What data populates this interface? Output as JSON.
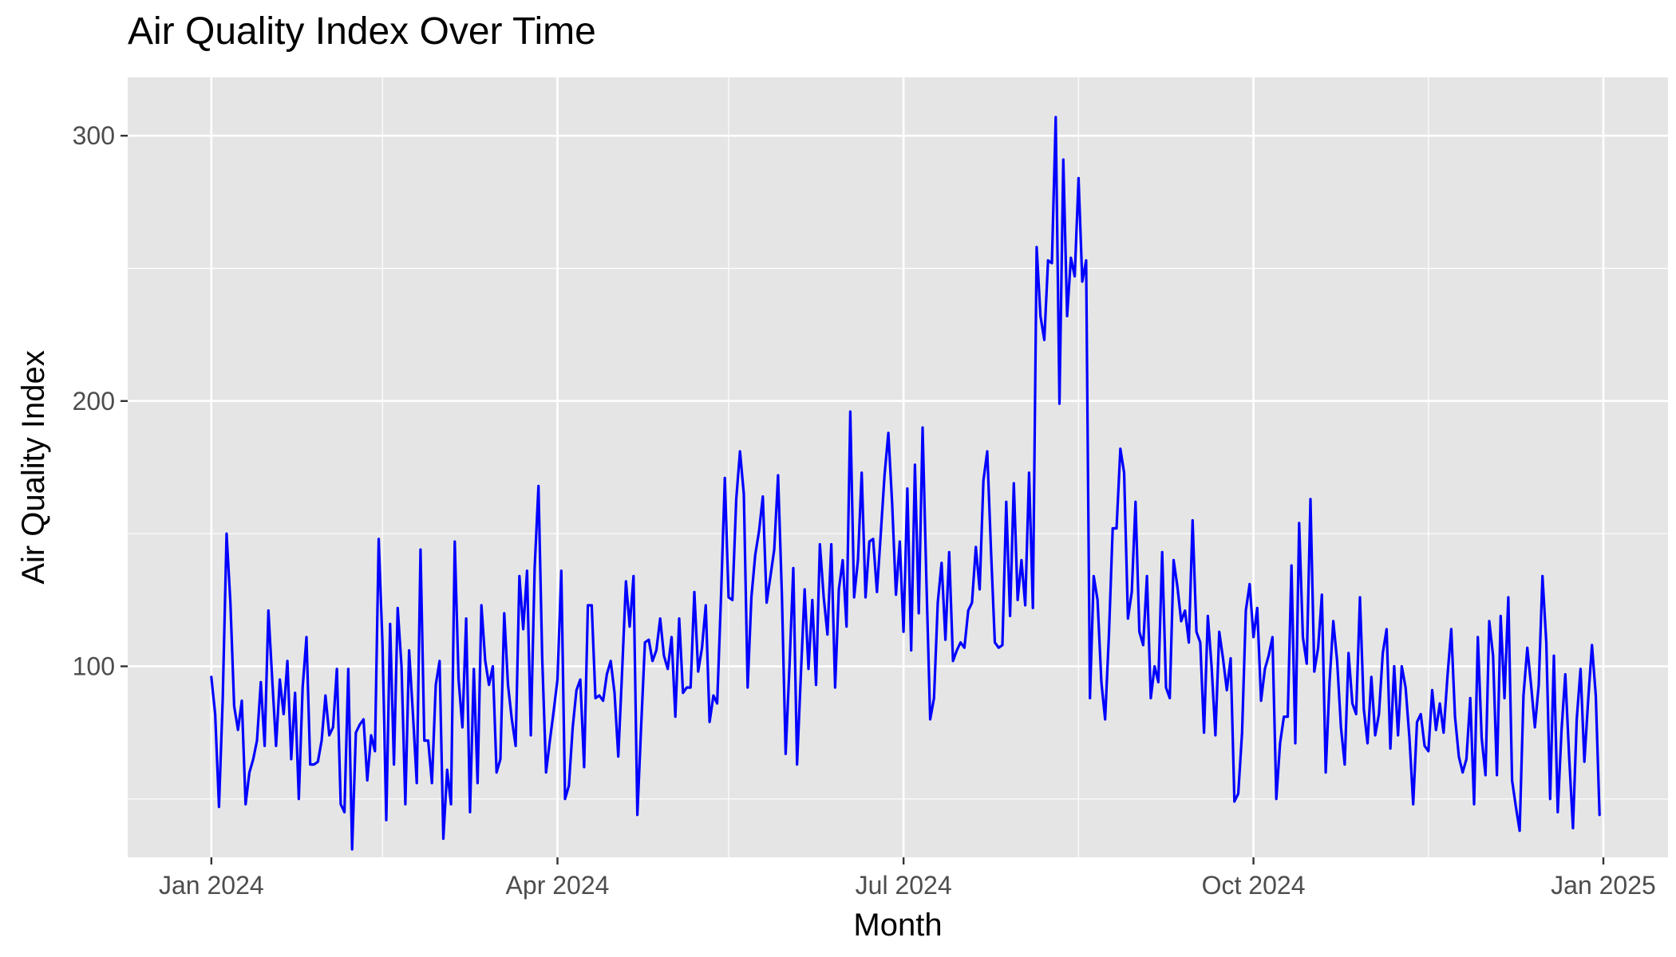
{
  "chart_data": {
    "type": "line",
    "title": "Air Quality Index Over Time",
    "xlabel": "Month",
    "ylabel": "Air Quality Index",
    "x_axis": {
      "scale": "date",
      "range": [
        "2023-12-10",
        "2025-01-18"
      ],
      "ticks": [
        {
          "value": "2024-01-01",
          "label": "Jan 2024"
        },
        {
          "value": "2024-04-01",
          "label": "Apr 2024"
        },
        {
          "value": "2024-07-01",
          "label": "Jul 2024"
        },
        {
          "value": "2024-10-01",
          "label": "Oct 2024"
        },
        {
          "value": "2025-01-01",
          "label": "Jan 2025"
        }
      ],
      "minor_ticks": [
        "2024-02-15",
        "2024-05-16",
        "2024-08-16",
        "2024-11-16"
      ]
    },
    "y_axis": {
      "range": [
        28,
        322
      ],
      "ticks": [
        100,
        200,
        300
      ],
      "minor_ticks": [
        50,
        150,
        250
      ]
    },
    "grid": true,
    "legend": "none",
    "series": [
      {
        "color": "#0000ff",
        "x_start": "2024-01-01",
        "x_step": "1 day",
        "values": [
          96,
          82,
          47,
          88,
          150,
          124,
          85,
          76,
          87,
          48,
          60,
          65,
          72,
          94,
          70,
          121,
          95,
          70,
          95,
          82,
          102,
          65,
          90,
          50,
          92,
          111,
          63,
          63,
          64,
          72,
          89,
          74,
          77,
          99,
          48,
          45,
          99,
          31,
          75,
          78,
          80,
          57,
          74,
          68,
          148,
          108,
          42,
          116,
          63,
          122,
          100,
          48,
          106,
          82,
          56,
          144,
          72,
          72,
          56,
          93,
          102,
          35,
          61,
          48,
          147,
          95,
          77,
          118,
          45,
          99,
          56,
          123,
          102,
          93,
          100,
          60,
          65,
          120,
          93,
          80,
          70,
          134,
          114,
          136,
          74,
          137,
          168,
          103,
          60,
          72,
          83,
          95,
          136,
          50,
          55,
          77,
          91,
          95,
          62,
          123,
          123,
          88,
          89,
          87,
          97,
          102,
          90,
          66,
          98,
          132,
          115,
          134,
          44,
          77,
          109,
          110,
          102,
          106,
          118,
          104,
          99,
          111,
          81,
          118,
          90,
          92,
          92,
          128,
          98,
          107,
          123,
          79,
          89,
          86,
          126,
          171,
          126,
          125,
          163,
          181,
          165,
          92,
          126,
          142,
          151,
          164,
          124,
          134,
          144,
          172,
          127,
          67,
          100,
          137,
          63,
          97,
          129,
          99,
          125,
          93,
          146,
          126,
          112,
          146,
          92,
          129,
          140,
          115,
          196,
          126,
          140,
          173,
          126,
          147,
          148,
          128,
          150,
          172,
          188,
          161,
          127,
          147,
          113,
          167,
          106,
          176,
          120,
          190,
          133,
          80,
          88,
          124,
          139,
          110,
          143,
          102,
          106,
          109,
          107,
          121,
          124,
          145,
          129,
          170,
          181,
          143,
          109,
          107,
          108,
          162,
          119,
          169,
          125,
          140,
          123,
          173,
          122,
          258,
          232,
          223,
          253,
          252,
          307,
          199,
          291,
          232,
          254,
          247,
          284,
          245,
          253,
          88,
          134,
          125,
          94,
          80,
          112,
          152,
          152,
          182,
          173,
          118,
          128,
          162,
          113,
          108,
          134,
          88,
          100,
          94,
          143,
          92,
          88,
          140,
          130,
          117,
          121,
          109,
          155,
          113,
          109,
          75,
          119,
          100,
          74,
          113,
          103,
          91,
          103,
          49,
          52,
          75,
          121,
          131,
          111,
          122,
          87,
          99,
          104,
          111,
          50,
          71,
          81,
          81,
          138,
          71,
          154,
          111,
          101,
          163,
          98,
          107,
          127,
          60,
          94,
          117,
          102,
          77,
          63,
          105,
          86,
          82,
          126,
          84,
          71,
          96,
          74,
          82,
          105,
          114,
          69,
          100,
          74,
          100,
          92,
          73,
          48,
          79,
          82,
          70,
          68,
          91,
          76,
          86,
          75,
          96,
          114,
          81,
          66,
          60,
          65,
          88,
          48,
          111,
          73,
          59,
          117,
          104,
          59,
          119,
          88,
          126,
          57,
          47,
          38,
          89,
          107,
          93,
          77,
          93,
          134,
          109,
          50,
          104,
          45,
          76,
          97,
          66,
          39,
          80,
          99,
          64,
          87,
          108,
          89,
          44
        ]
      }
    ]
  }
}
